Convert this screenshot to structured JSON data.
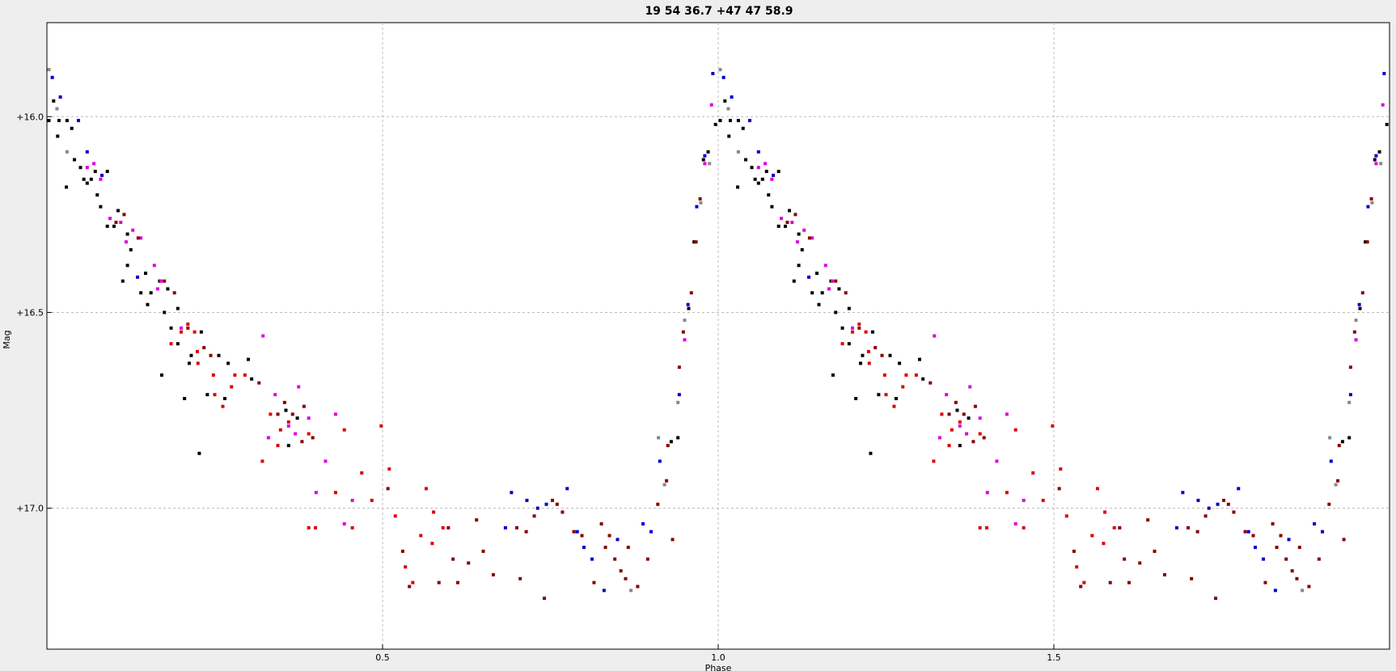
{
  "chart_data": {
    "type": "scatter",
    "title": "19 54 36.7 +47 47 58.9",
    "xlabel": "Phase",
    "ylabel": "Mag",
    "xlim": [
      0.0,
      2.0
    ],
    "ylim": [
      15.76,
      17.36
    ],
    "y_inverted": true,
    "grid": true,
    "x_ticks": [
      {
        "value": 0.5,
        "label": "0.5"
      },
      {
        "value": 1.0,
        "label": "1.0"
      },
      {
        "value": 1.5,
        "label": "1.5"
      }
    ],
    "y_ticks": [
      {
        "value": 16.0,
        "label": "+16.0"
      },
      {
        "value": 16.5,
        "label": "+16.5"
      },
      {
        "value": 17.0,
        "label": "+17.0"
      }
    ],
    "series_colors": {
      "black": "#000000",
      "gray": "#888888",
      "blue": "#0000cc",
      "magenta": "#dd00dd",
      "red": "#dd0000",
      "maroon": "#880000"
    },
    "points_repeat_period": 1.0,
    "points": [
      {
        "x": 0.003,
        "y": 15.88,
        "c": "gray"
      },
      {
        "x": 0.008,
        "y": 15.9,
        "c": "blue"
      },
      {
        "x": 0.003,
        "y": 16.01,
        "c": "black"
      },
      {
        "x": 0.01,
        "y": 15.96,
        "c": "black"
      },
      {
        "x": 0.015,
        "y": 15.98,
        "c": "gray"
      },
      {
        "x": 0.02,
        "y": 15.95,
        "c": "blue"
      },
      {
        "x": 0.018,
        "y": 16.01,
        "c": "black"
      },
      {
        "x": 0.016,
        "y": 16.05,
        "c": "black"
      },
      {
        "x": 0.03,
        "y": 16.01,
        "c": "black"
      },
      {
        "x": 0.037,
        "y": 16.03,
        "c": "black"
      },
      {
        "x": 0.047,
        "y": 16.01,
        "c": "blue"
      },
      {
        "x": 0.03,
        "y": 16.09,
        "c": "gray"
      },
      {
        "x": 0.029,
        "y": 16.18,
        "c": "black"
      },
      {
        "x": 0.041,
        "y": 16.11,
        "c": "black"
      },
      {
        "x": 0.05,
        "y": 16.13,
        "c": "black"
      },
      {
        "x": 0.06,
        "y": 16.09,
        "c": "blue"
      },
      {
        "x": 0.055,
        "y": 16.16,
        "c": "black"
      },
      {
        "x": 0.06,
        "y": 16.17,
        "c": "black"
      },
      {
        "x": 0.066,
        "y": 16.16,
        "c": "black"
      },
      {
        "x": 0.07,
        "y": 16.12,
        "c": "magenta"
      },
      {
        "x": 0.072,
        "y": 16.14,
        "c": "black"
      },
      {
        "x": 0.06,
        "y": 16.13,
        "c": "magenta"
      },
      {
        "x": 0.08,
        "y": 16.16,
        "c": "magenta"
      },
      {
        "x": 0.082,
        "y": 16.15,
        "c": "blue"
      },
      {
        "x": 0.09,
        "y": 16.14,
        "c": "black"
      },
      {
        "x": 0.075,
        "y": 16.2,
        "c": "black"
      },
      {
        "x": 0.08,
        "y": 16.23,
        "c": "black"
      },
      {
        "x": 0.094,
        "y": 16.26,
        "c": "magenta"
      },
      {
        "x": 0.09,
        "y": 16.28,
        "c": "black"
      },
      {
        "x": 0.1,
        "y": 16.28,
        "c": "black"
      },
      {
        "x": 0.106,
        "y": 16.24,
        "c": "black"
      },
      {
        "x": 0.115,
        "y": 16.25,
        "c": "maroon"
      },
      {
        "x": 0.103,
        "y": 16.27,
        "c": "maroon"
      },
      {
        "x": 0.11,
        "y": 16.27,
        "c": "magenta"
      },
      {
        "x": 0.118,
        "y": 16.32,
        "c": "magenta"
      },
      {
        "x": 0.128,
        "y": 16.29,
        "c": "magenta"
      },
      {
        "x": 0.12,
        "y": 16.3,
        "c": "black"
      },
      {
        "x": 0.14,
        "y": 16.31,
        "c": "magenta"
      },
      {
        "x": 0.125,
        "y": 16.34,
        "c": "black"
      },
      {
        "x": 0.136,
        "y": 16.31,
        "c": "maroon"
      },
      {
        "x": 0.12,
        "y": 16.38,
        "c": "black"
      },
      {
        "x": 0.113,
        "y": 16.42,
        "c": "black"
      },
      {
        "x": 0.135,
        "y": 16.41,
        "c": "blue"
      },
      {
        "x": 0.147,
        "y": 16.4,
        "c": "black"
      },
      {
        "x": 0.16,
        "y": 16.38,
        "c": "magenta"
      },
      {
        "x": 0.168,
        "y": 16.42,
        "c": "black"
      },
      {
        "x": 0.17,
        "y": 16.42,
        "c": "magenta"
      },
      {
        "x": 0.175,
        "y": 16.42,
        "c": "maroon"
      },
      {
        "x": 0.14,
        "y": 16.45,
        "c": "black"
      },
      {
        "x": 0.155,
        "y": 16.45,
        "c": "black"
      },
      {
        "x": 0.15,
        "y": 16.48,
        "c": "black"
      },
      {
        "x": 0.165,
        "y": 16.44,
        "c": "magenta"
      },
      {
        "x": 0.18,
        "y": 16.44,
        "c": "black"
      },
      {
        "x": 0.19,
        "y": 16.45,
        "c": "maroon"
      },
      {
        "x": 0.195,
        "y": 16.49,
        "c": "black"
      },
      {
        "x": 0.175,
        "y": 16.5,
        "c": "black"
      },
      {
        "x": 0.185,
        "y": 16.54,
        "c": "black"
      },
      {
        "x": 0.2,
        "y": 16.54,
        "c": "magenta"
      },
      {
        "x": 0.21,
        "y": 16.53,
        "c": "red"
      },
      {
        "x": 0.2,
        "y": 16.55,
        "c": "red"
      },
      {
        "x": 0.195,
        "y": 16.58,
        "c": "black"
      },
      {
        "x": 0.185,
        "y": 16.58,
        "c": "red"
      },
      {
        "x": 0.21,
        "y": 16.54,
        "c": "maroon"
      },
      {
        "x": 0.22,
        "y": 16.55,
        "c": "red"
      },
      {
        "x": 0.23,
        "y": 16.55,
        "c": "black"
      },
      {
        "x": 0.215,
        "y": 16.61,
        "c": "black"
      },
      {
        "x": 0.224,
        "y": 16.6,
        "c": "red"
      },
      {
        "x": 0.234,
        "y": 16.59,
        "c": "maroon"
      },
      {
        "x": 0.212,
        "y": 16.63,
        "c": "black"
      },
      {
        "x": 0.225,
        "y": 16.63,
        "c": "red"
      },
      {
        "x": 0.244,
        "y": 16.61,
        "c": "maroon"
      },
      {
        "x": 0.256,
        "y": 16.61,
        "c": "black"
      },
      {
        "x": 0.27,
        "y": 16.63,
        "c": "black"
      },
      {
        "x": 0.3,
        "y": 16.62,
        "c": "black"
      },
      {
        "x": 0.28,
        "y": 16.66,
        "c": "red"
      },
      {
        "x": 0.295,
        "y": 16.66,
        "c": "red"
      },
      {
        "x": 0.305,
        "y": 16.67,
        "c": "black"
      },
      {
        "x": 0.316,
        "y": 16.68,
        "c": "maroon"
      },
      {
        "x": 0.248,
        "y": 16.66,
        "c": "red"
      },
      {
        "x": 0.275,
        "y": 16.69,
        "c": "red"
      },
      {
        "x": 0.25,
        "y": 16.71,
        "c": "red"
      },
      {
        "x": 0.239,
        "y": 16.71,
        "c": "black"
      },
      {
        "x": 0.265,
        "y": 16.72,
        "c": "black"
      },
      {
        "x": 0.322,
        "y": 16.56,
        "c": "magenta"
      },
      {
        "x": 0.171,
        "y": 16.66,
        "c": "black"
      },
      {
        "x": 0.205,
        "y": 16.72,
        "c": "black"
      },
      {
        "x": 0.262,
        "y": 16.74,
        "c": "red"
      },
      {
        "x": 0.34,
        "y": 16.71,
        "c": "magenta"
      },
      {
        "x": 0.375,
        "y": 16.69,
        "c": "magenta"
      },
      {
        "x": 0.354,
        "y": 16.73,
        "c": "maroon"
      },
      {
        "x": 0.383,
        "y": 16.74,
        "c": "maroon"
      },
      {
        "x": 0.333,
        "y": 16.76,
        "c": "red"
      },
      {
        "x": 0.344,
        "y": 16.76,
        "c": "maroon"
      },
      {
        "x": 0.356,
        "y": 16.75,
        "c": "black"
      },
      {
        "x": 0.366,
        "y": 16.76,
        "c": "maroon"
      },
      {
        "x": 0.39,
        "y": 16.77,
        "c": "magenta"
      },
      {
        "x": 0.373,
        "y": 16.77,
        "c": "black"
      },
      {
        "x": 0.36,
        "y": 16.78,
        "c": "red"
      },
      {
        "x": 0.36,
        "y": 16.79,
        "c": "magenta"
      },
      {
        "x": 0.348,
        "y": 16.8,
        "c": "red"
      },
      {
        "x": 0.33,
        "y": 16.82,
        "c": "magenta"
      },
      {
        "x": 0.37,
        "y": 16.81,
        "c": "magenta"
      },
      {
        "x": 0.39,
        "y": 16.81,
        "c": "red"
      },
      {
        "x": 0.396,
        "y": 16.82,
        "c": "maroon"
      },
      {
        "x": 0.344,
        "y": 16.84,
        "c": "red"
      },
      {
        "x": 0.36,
        "y": 16.84,
        "c": "black"
      },
      {
        "x": 0.38,
        "y": 16.83,
        "c": "maroon"
      },
      {
        "x": 0.43,
        "y": 16.76,
        "c": "magenta"
      },
      {
        "x": 0.443,
        "y": 16.8,
        "c": "red"
      },
      {
        "x": 0.498,
        "y": 16.79,
        "c": "red"
      },
      {
        "x": 0.321,
        "y": 16.88,
        "c": "red"
      },
      {
        "x": 0.415,
        "y": 16.88,
        "c": "magenta"
      },
      {
        "x": 0.469,
        "y": 16.91,
        "c": "red"
      },
      {
        "x": 0.401,
        "y": 16.96,
        "c": "magenta"
      },
      {
        "x": 0.43,
        "y": 16.96,
        "c": "red"
      },
      {
        "x": 0.455,
        "y": 16.98,
        "c": "magenta"
      },
      {
        "x": 0.484,
        "y": 16.98,
        "c": "red"
      },
      {
        "x": 0.39,
        "y": 17.05,
        "c": "red"
      },
      {
        "x": 0.4,
        "y": 17.05,
        "c": "red"
      },
      {
        "x": 0.443,
        "y": 17.04,
        "c": "magenta"
      },
      {
        "x": 0.455,
        "y": 17.05,
        "c": "red"
      },
      {
        "x": 0.227,
        "y": 16.86,
        "c": "black"
      },
      {
        "x": 0.51,
        "y": 16.9,
        "c": "red"
      },
      {
        "x": 0.508,
        "y": 16.95,
        "c": "maroon"
      },
      {
        "x": 0.519,
        "y": 17.02,
        "c": "red"
      },
      {
        "x": 0.53,
        "y": 17.11,
        "c": "maroon"
      },
      {
        "x": 0.534,
        "y": 17.15,
        "c": "red"
      },
      {
        "x": 0.54,
        "y": 17.2,
        "c": "maroon"
      },
      {
        "x": 0.545,
        "y": 17.19,
        "c": "red"
      },
      {
        "x": 0.565,
        "y": 16.95,
        "c": "red"
      },
      {
        "x": 0.557,
        "y": 17.07,
        "c": "red"
      },
      {
        "x": 0.576,
        "y": 17.01,
        "c": "red"
      },
      {
        "x": 0.574,
        "y": 17.09,
        "c": "red"
      },
      {
        "x": 0.59,
        "y": 17.05,
        "c": "red"
      },
      {
        "x": 0.598,
        "y": 17.05,
        "c": "maroon"
      },
      {
        "x": 0.584,
        "y": 17.19,
        "c": "maroon"
      },
      {
        "x": 0.605,
        "y": 17.13,
        "c": "maroon"
      },
      {
        "x": 0.612,
        "y": 17.19,
        "c": "maroon"
      },
      {
        "x": 0.628,
        "y": 17.14,
        "c": "maroon"
      },
      {
        "x": 0.64,
        "y": 17.03,
        "c": "maroon"
      },
      {
        "x": 0.65,
        "y": 17.11,
        "c": "maroon"
      },
      {
        "x": 0.665,
        "y": 17.17,
        "c": "maroon"
      },
      {
        "x": 0.683,
        "y": 17.05,
        "c": "blue"
      },
      {
        "x": 0.692,
        "y": 16.96,
        "c": "blue"
      },
      {
        "x": 0.7,
        "y": 17.05,
        "c": "maroon"
      },
      {
        "x": 0.705,
        "y": 17.18,
        "c": "maroon"
      },
      {
        "x": 0.714,
        "y": 17.06,
        "c": "maroon"
      },
      {
        "x": 0.715,
        "y": 16.98,
        "c": "blue"
      },
      {
        "x": 0.726,
        "y": 17.02,
        "c": "maroon"
      },
      {
        "x": 0.731,
        "y": 17.0,
        "c": "blue"
      },
      {
        "x": 0.744,
        "y": 16.99,
        "c": "blue"
      },
      {
        "x": 0.753,
        "y": 16.98,
        "c": "maroon"
      },
      {
        "x": 0.76,
        "y": 16.99,
        "c": "maroon"
      },
      {
        "x": 0.768,
        "y": 17.01,
        "c": "maroon"
      },
      {
        "x": 0.775,
        "y": 16.95,
        "c": "blue"
      },
      {
        "x": 0.741,
        "y": 17.23,
        "c": "maroon"
      },
      {
        "x": 0.785,
        "y": 17.06,
        "c": "maroon"
      },
      {
        "x": 0.79,
        "y": 17.06,
        "c": "blue"
      },
      {
        "x": 0.8,
        "y": 17.1,
        "c": "blue"
      },
      {
        "x": 0.797,
        "y": 17.07,
        "c": "maroon"
      },
      {
        "x": 0.812,
        "y": 17.13,
        "c": "blue"
      },
      {
        "x": 0.815,
        "y": 17.19,
        "c": "maroon"
      },
      {
        "x": 0.826,
        "y": 17.04,
        "c": "maroon"
      },
      {
        "x": 0.83,
        "y": 17.21,
        "c": "blue"
      },
      {
        "x": 0.832,
        "y": 17.1,
        "c": "maroon"
      },
      {
        "x": 0.838,
        "y": 17.07,
        "c": "maroon"
      },
      {
        "x": 0.85,
        "y": 17.08,
        "c": "blue"
      },
      {
        "x": 0.846,
        "y": 17.13,
        "c": "maroon"
      },
      {
        "x": 0.855,
        "y": 17.16,
        "c": "maroon"
      },
      {
        "x": 0.862,
        "y": 17.18,
        "c": "maroon"
      },
      {
        "x": 0.866,
        "y": 17.1,
        "c": "maroon"
      },
      {
        "x": 0.87,
        "y": 17.21,
        "c": "gray"
      },
      {
        "x": 0.88,
        "y": 17.2,
        "c": "maroon"
      },
      {
        "x": 0.888,
        "y": 17.04,
        "c": "blue"
      },
      {
        "x": 0.895,
        "y": 17.13,
        "c": "maroon"
      },
      {
        "x": 0.9,
        "y": 17.06,
        "c": "blue"
      },
      {
        "x": 0.911,
        "y": 16.82,
        "c": "gray"
      },
      {
        "x": 0.913,
        "y": 16.88,
        "c": "blue"
      },
      {
        "x": 0.91,
        "y": 16.99,
        "c": "maroon"
      },
      {
        "x": 0.92,
        "y": 16.94,
        "c": "gray"
      },
      {
        "x": 0.923,
        "y": 16.93,
        "c": "maroon"
      },
      {
        "x": 0.925,
        "y": 16.84,
        "c": "maroon"
      },
      {
        "x": 0.93,
        "y": 16.83,
        "c": "black"
      },
      {
        "x": 0.932,
        "y": 17.08,
        "c": "maroon"
      },
      {
        "x": 0.94,
        "y": 16.82,
        "c": "black"
      },
      {
        "x": 0.94,
        "y": 16.73,
        "c": "gray"
      },
      {
        "x": 0.942,
        "y": 16.71,
        "c": "blue"
      },
      {
        "x": 0.942,
        "y": 16.64,
        "c": "maroon"
      },
      {
        "x": 0.948,
        "y": 16.55,
        "c": "maroon"
      },
      {
        "x": 0.95,
        "y": 16.52,
        "c": "gray"
      },
      {
        "x": 0.95,
        "y": 16.57,
        "c": "magenta"
      },
      {
        "x": 0.955,
        "y": 16.48,
        "c": "blue"
      },
      {
        "x": 0.956,
        "y": 16.49,
        "c": "black"
      },
      {
        "x": 0.96,
        "y": 16.45,
        "c": "maroon"
      },
      {
        "x": 0.964,
        "y": 16.32,
        "c": "black"
      },
      {
        "x": 0.967,
        "y": 16.32,
        "c": "maroon"
      },
      {
        "x": 0.968,
        "y": 16.23,
        "c": "blue"
      },
      {
        "x": 0.973,
        "y": 16.21,
        "c": "maroon"
      },
      {
        "x": 0.974,
        "y": 16.22,
        "c": "gray"
      },
      {
        "x": 0.978,
        "y": 16.11,
        "c": "black"
      },
      {
        "x": 0.98,
        "y": 16.1,
        "c": "blue"
      },
      {
        "x": 0.98,
        "y": 16.12,
        "c": "magenta"
      },
      {
        "x": 0.985,
        "y": 16.09,
        "c": "black"
      },
      {
        "x": 0.987,
        "y": 16.12,
        "c": "gray"
      },
      {
        "x": 0.99,
        "y": 15.97,
        "c": "magenta"
      },
      {
        "x": 0.992,
        "y": 15.89,
        "c": "blue"
      },
      {
        "x": 0.996,
        "y": 16.02,
        "c": "black"
      }
    ]
  }
}
